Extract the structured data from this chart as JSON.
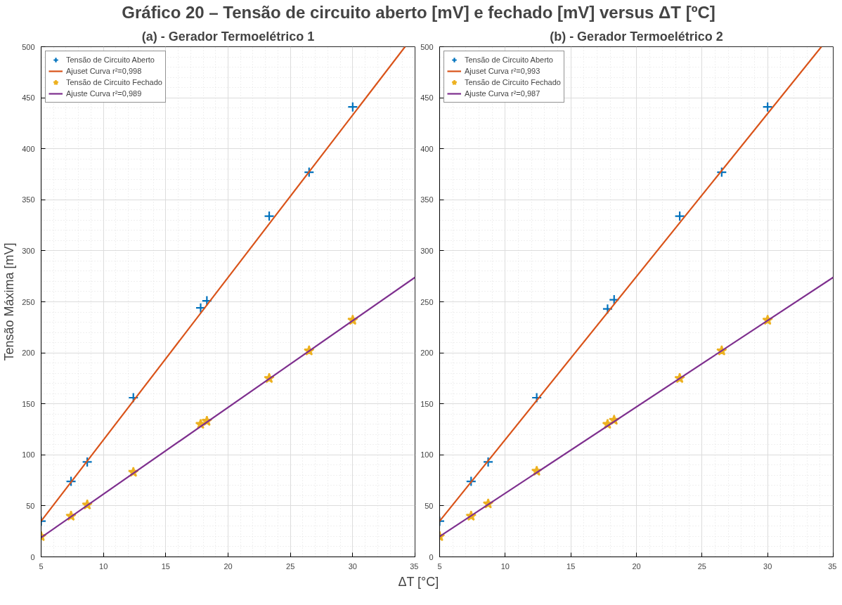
{
  "chart_data": [
    {
      "type": "scatter",
      "title": "Gráfico 20 – Tensão de circuito aberto [mV] e fechado [mV] versus ΔT [ºC]",
      "subtitle": "(a) - Gerador Termoelétrico 1",
      "xlabel": "ΔT [°C]",
      "ylabel": "Tensão Máxima [mV]",
      "xlim": [
        5,
        35
      ],
      "xticks": [
        5,
        10,
        15,
        20,
        25,
        30,
        35
      ],
      "ylim": [
        0,
        500
      ],
      "yticks": [
        0,
        50,
        100,
        150,
        200,
        250,
        300,
        350,
        400,
        450,
        500
      ],
      "grid": true,
      "legend": "top left",
      "series": [
        {
          "name": "Tensão de Circuito Aberto",
          "type": "scatter",
          "marker": "cross",
          "color": "#0072bd",
          "x": [
            5,
            7.4,
            8.7,
            12.4,
            17.8,
            18.3,
            23.3,
            26.5,
            30
          ],
          "values": [
            35,
            74,
            93,
            156,
            244,
            251,
            334,
            377,
            441
          ]
        },
        {
          "name": "Ajuset Curva r²=0,998",
          "type": "line",
          "marker": "none",
          "color": "#d95319",
          "x": [
            5,
            34.2
          ],
          "values": [
            35,
            500
          ]
        },
        {
          "name": "Tensão de Circuito Fechado",
          "type": "scatter",
          "marker": "star",
          "color": "#edb120",
          "x": [
            5,
            7.4,
            8.7,
            12.4,
            17.8,
            18.3,
            23.3,
            26.5,
            30
          ],
          "values": [
            20,
            40,
            51,
            83,
            130,
            133,
            175,
            202,
            232
          ]
        },
        {
          "name": "Ajuste Curva r²=0,989",
          "type": "line",
          "marker": "none",
          "color": "#7e2f8e",
          "x": [
            5,
            35
          ],
          "values": [
            19,
            274
          ]
        }
      ]
    },
    {
      "type": "scatter",
      "subtitle": "(b) - Gerador Termoelétrico 2",
      "xlim": [
        5,
        35
      ],
      "xticks": [
        5,
        10,
        15,
        20,
        25,
        30,
        35
      ],
      "ylim": [
        0,
        500
      ],
      "yticks": [
        0,
        50,
        100,
        150,
        200,
        250,
        300,
        350,
        400,
        450,
        500
      ],
      "grid": true,
      "legend": "top left",
      "series": [
        {
          "name": "Tensão de Circuito Aberto",
          "type": "scatter",
          "marker": "cross",
          "color": "#0072bd",
          "x": [
            5,
            7.4,
            8.7,
            12.4,
            17.8,
            18.3,
            23.3,
            26.5,
            30
          ],
          "values": [
            35,
            74,
            93,
            156,
            243,
            252,
            334,
            377,
            441
          ]
        },
        {
          "name": "Ajuset Curva r²=0,993",
          "type": "line",
          "marker": "none",
          "color": "#d95319",
          "x": [
            5,
            34.1
          ],
          "values": [
            35,
            500
          ]
        },
        {
          "name": "Tensão de Circuito Fechado",
          "type": "scatter",
          "marker": "star",
          "color": "#edb120",
          "x": [
            5,
            7.4,
            8.7,
            12.4,
            17.8,
            18.3,
            23.3,
            26.5,
            30
          ],
          "values": [
            20,
            40,
            52,
            84,
            130,
            134,
            175,
            202,
            232
          ]
        },
        {
          "name": "Ajuste Curva r²=0,987",
          "type": "line",
          "marker": "none",
          "color": "#7e2f8e",
          "x": [
            5,
            35
          ],
          "values": [
            20,
            274
          ]
        }
      ]
    }
  ]
}
